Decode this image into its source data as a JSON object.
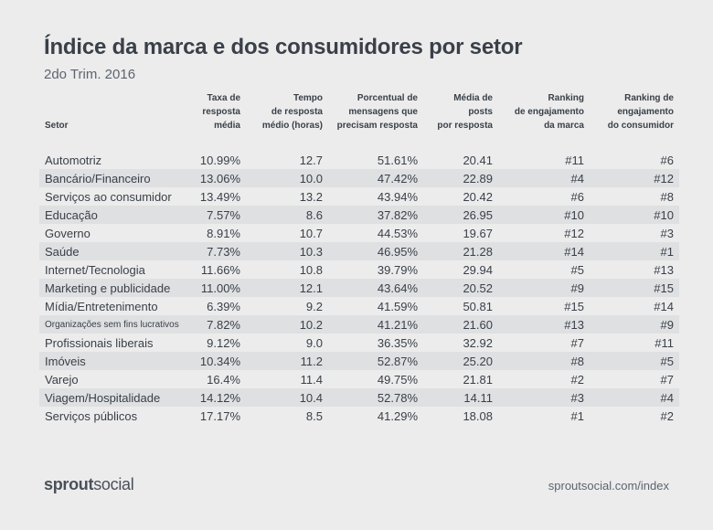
{
  "title": "Índice da marca e dos consumidores por setor",
  "subtitle": "2do Trim. 2016",
  "chart_data": {
    "type": "table",
    "columns": [
      "Setor",
      "Taxa de resposta média",
      "Tempo de resposta médio (horas)",
      "Porcentual de mensagens que precisam resposta",
      "Média de posts por resposta",
      "Ranking de engajamento da marca",
      "Ranking de engajamento do consumidor"
    ],
    "rows": [
      [
        "Automotriz",
        "10.99%",
        "12.7",
        "51.61%",
        "20.41",
        "#11",
        "#6"
      ],
      [
        "Bancário/Financeiro",
        "13.06%",
        "10.0",
        "47.42%",
        "22.89",
        "#4",
        "#12"
      ],
      [
        "Serviços ao consumidor",
        "13.49%",
        "13.2",
        "43.94%",
        "20.42",
        "#6",
        "#8"
      ],
      [
        "Educação",
        "7.57%",
        "8.6",
        "37.82%",
        "26.95",
        "#10",
        "#10"
      ],
      [
        "Governo",
        "8.91%",
        "10.7",
        "44.53%",
        "19.67",
        "#12",
        "#3"
      ],
      [
        "Saúde",
        "7.73%",
        "10.3",
        "46.95%",
        "21.28",
        "#14",
        "#1"
      ],
      [
        "Internet/Tecnologia",
        "11.66%",
        "10.8",
        "39.79%",
        "29.94",
        "#5",
        "#13"
      ],
      [
        "Marketing e publicidade",
        "11.00%",
        "12.1",
        "43.64%",
        "20.52",
        "#9",
        "#15"
      ],
      [
        "Mídia/Entretenimento",
        "6.39%",
        "9.2",
        "41.59%",
        "50.81",
        "#15",
        "#14"
      ],
      [
        "Organizações sem fins lucrativos",
        "7.82%",
        "10.2",
        "41.21%",
        "21.60",
        "#13",
        "#9"
      ],
      [
        "Profissionais liberais",
        "9.12%",
        "9.0",
        "36.35%",
        "32.92",
        "#7",
        "#11"
      ],
      [
        "Imóveis",
        "10.34%",
        "11.2",
        "52.87%",
        "25.20",
        "#8",
        "#5"
      ],
      [
        "Varejo",
        "16.4%",
        "11.4",
        "49.75%",
        "21.81",
        "#2",
        "#7"
      ],
      [
        "Viagem/Hospitalidade",
        "14.12%",
        "10.4",
        "52.78%",
        "14.11",
        "#3",
        "#4"
      ],
      [
        "Serviços públicos",
        "17.17%",
        "8.5",
        "41.29%",
        "18.08",
        "#1",
        "#2"
      ]
    ]
  },
  "header_lines": [
    [
      "Setor"
    ],
    [
      "Taxa de",
      "resposta média"
    ],
    [
      "Tempo",
      "de resposta",
      "médio (horas)"
    ],
    [
      "Porcentual de",
      "mensagens que",
      "precisam resposta"
    ],
    [
      "Média de posts",
      "por resposta"
    ],
    [
      "Ranking",
      "de engajamento",
      "da marca"
    ],
    [
      "Ranking de",
      "engajamento",
      "do consumidor"
    ]
  ],
  "footer": {
    "logo_bold": "sprout",
    "logo_regular": "social",
    "url": "sproutsocial.com/index"
  },
  "colors": {
    "stripe": "#dfe0e2",
    "background": "#ececec",
    "text": "#3a4049"
  }
}
